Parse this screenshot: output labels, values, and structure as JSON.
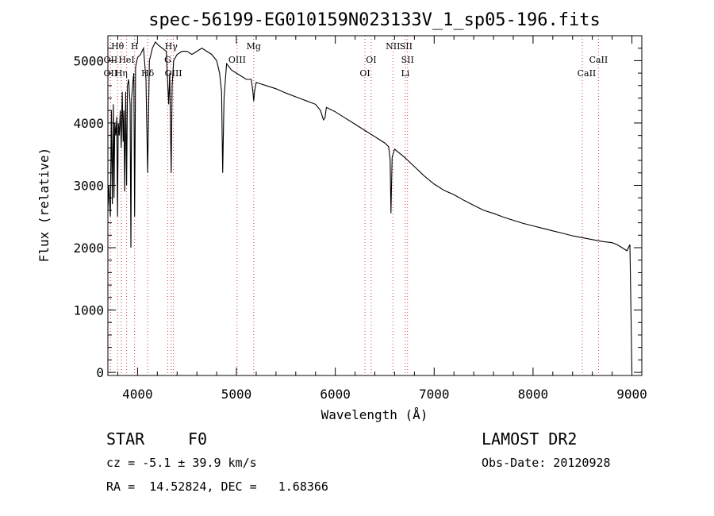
{
  "chart_data": {
    "type": "line",
    "title": "spec-56199-EG010159N023133V_1_sp05-196.fits",
    "xlabel": "Wavelength (Å)",
    "ylabel": "Flux (relative)",
    "xlim": [
      3700,
      9100
    ],
    "ylim": [
      -50,
      5400
    ],
    "x_ticks": [
      4000,
      5000,
      6000,
      7000,
      8000,
      9000
    ],
    "y_ticks": [
      0,
      1000,
      2000,
      3000,
      4000,
      5000
    ],
    "grid": false,
    "series": [
      {
        "x": [
          3700,
          3710,
          3725,
          3735,
          3745,
          3755,
          3762,
          3770,
          3780,
          3790,
          3797,
          3805,
          3815,
          3825,
          3835,
          3845,
          3855,
          3862,
          3870,
          3880,
          3889,
          3898,
          3910,
          3925,
          3933,
          3940,
          3955,
          3962,
          3970,
          3980,
          4000,
          4030,
          4060,
          4085,
          4102,
          4120,
          4150,
          4180,
          4210,
          4250,
          4290,
          4315,
          4325,
          4340,
          4350,
          4365,
          4400,
          4450,
          4500,
          4550,
          4600,
          4650,
          4700,
          4750,
          4800,
          4830,
          4850,
          4861,
          4875,
          4900,
          4950,
          5000,
          5050,
          5100,
          5150,
          5167,
          5175,
          5183,
          5200,
          5300,
          5400,
          5500,
          5600,
          5700,
          5800,
          5850,
          5880,
          5895,
          5910,
          5950,
          6000,
          6100,
          6200,
          6300,
          6400,
          6450,
          6500,
          6540,
          6555,
          6563,
          6575,
          6600,
          6700,
          6800,
          6900,
          7000,
          7100,
          7200,
          7300,
          7400,
          7500,
          7600,
          7700,
          7800,
          7900,
          8000,
          8100,
          8200,
          8300,
          8400,
          8500,
          8600,
          8700,
          8800,
          8850,
          8900,
          8950,
          8980,
          8990,
          9000
        ],
        "y": [
          2600,
          3000,
          2500,
          4200,
          2700,
          4300,
          2800,
          4000,
          3800,
          4100,
          2500,
          4000,
          3800,
          4200,
          3600,
          4500,
          3700,
          4200,
          2900,
          4500,
          3000,
          4600,
          4700,
          4300,
          2000,
          4400,
          4700,
          4800,
          2500,
          4900,
          5050,
          5100,
          5200,
          4700,
          3200,
          5000,
          5200,
          5300,
          5250,
          5200,
          5150,
          4300,
          4800,
          3200,
          4600,
          5000,
          5100,
          5150,
          5150,
          5100,
          5150,
          5200,
          5150,
          5100,
          5000,
          4800,
          4500,
          3200,
          4400,
          4950,
          4850,
          4800,
          4750,
          4700,
          4700,
          4500,
          4350,
          4500,
          4650,
          4600,
          4550,
          4480,
          4420,
          4360,
          4300,
          4200,
          4050,
          4080,
          4250,
          4220,
          4180,
          4080,
          3980,
          3880,
          3780,
          3730,
          3680,
          3620,
          3400,
          2550,
          3450,
          3580,
          3450,
          3300,
          3150,
          3020,
          2920,
          2850,
          2760,
          2680,
          2600,
          2550,
          2490,
          2440,
          2390,
          2350,
          2310,
          2270,
          2230,
          2190,
          2160,
          2130,
          2100,
          2080,
          2050,
          2000,
          1950,
          2050,
          1000,
          0
        ]
      }
    ],
    "line_markers": [
      {
        "name": "Hθ",
        "x": 3798,
        "row": 0
      },
      {
        "name": "OII",
        "x": 3727,
        "row": 1
      },
      {
        "name": "HeI",
        "x": 3889,
        "row": 1
      },
      {
        "name": "OII",
        "x": 3727,
        "row": 2
      },
      {
        "name": "Hη",
        "x": 3835,
        "row": 2
      },
      {
        "name": "H",
        "x": 3970,
        "row": 0
      },
      {
        "name": "Hδ",
        "x": 4102,
        "row": 2
      },
      {
        "name": "Hγ",
        "x": 4340,
        "row": 0
      },
      {
        "name": "G",
        "x": 4305,
        "row": 1
      },
      {
        "name": "OIII",
        "x": 4363,
        "row": 2
      },
      {
        "name": "OIII",
        "x": 5007,
        "row": 1
      },
      {
        "name": "Mg",
        "x": 5175,
        "row": 0
      },
      {
        "name": "OI",
        "x": 6363,
        "row": 1
      },
      {
        "name": "OI",
        "x": 6300,
        "row": 2
      },
      {
        "name": "NII",
        "x": 6583,
        "row": 0
      },
      {
        "name": "SII",
        "x": 6716,
        "row": 0
      },
      {
        "name": "SII",
        "x": 6731,
        "row": 1
      },
      {
        "name": "Li",
        "x": 6708,
        "row": 2
      },
      {
        "name": "CaII",
        "x": 8662,
        "row": 1
      },
      {
        "name": "CaII",
        "x": 8542,
        "row": 2
      }
    ],
    "marker_lines_x": [
      3727,
      3798,
      3835,
      3889,
      3970,
      4102,
      4305,
      4340,
      4363,
      5007,
      5175,
      6300,
      6363,
      6583,
      6708,
      6731,
      8498,
      8662
    ]
  },
  "info": {
    "class_label": "STAR",
    "subclass": "F0",
    "survey": "LAMOST DR2",
    "cz": "cz = -5.1 ± 39.9 km/s",
    "obs_date": "Obs-Date: 20120928",
    "coords": "RA =  14.52824, DEC =   1.68366"
  }
}
